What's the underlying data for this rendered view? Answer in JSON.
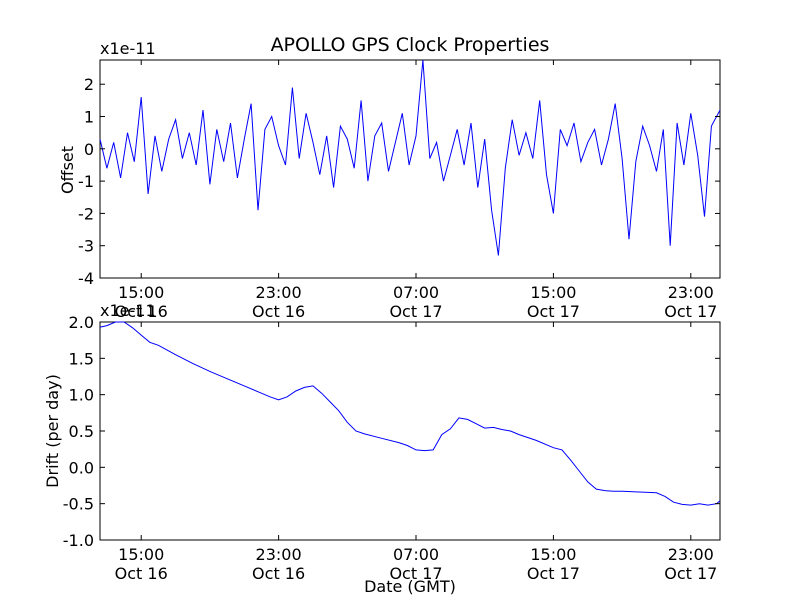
{
  "chart_data": [
    {
      "type": "line",
      "title": "APOLLO GPS Clock Properties",
      "xlabel": "",
      "ylabel": "Offset",
      "scale_label": "x1e-11",
      "scale_factor": 1e-11,
      "x_range_hours": [
        12.6,
        48.7
      ],
      "x_ticks": [
        {
          "hour": 15,
          "time": "15:00",
          "date": "Oct 16"
        },
        {
          "hour": 23,
          "time": "23:00",
          "date": "Oct 16"
        },
        {
          "hour": 31,
          "time": "07:00",
          "date": "Oct 17"
        },
        {
          "hour": 39,
          "time": "15:00",
          "date": "Oct 17"
        },
        {
          "hour": 47,
          "time": "23:00",
          "date": "Oct 17"
        }
      ],
      "ylim": [
        -4,
        2.75
      ],
      "y_ticks": [
        2,
        1,
        0,
        -1,
        -2,
        -3,
        -4
      ],
      "y_tick_labels": [
        "2",
        "1",
        "0",
        "-1",
        "-2",
        "-3",
        "-4"
      ],
      "grid": false,
      "line_color": "#0000ff",
      "series": [
        {
          "x_hours": [
            12.6,
            13.0,
            13.4,
            13.8,
            14.2,
            14.6,
            15.0,
            15.4,
            15.8,
            16.2,
            16.6,
            17.0,
            17.4,
            17.8,
            18.2,
            18.6,
            19.0,
            19.4,
            19.8,
            20.2,
            20.6,
            21.0,
            21.4,
            21.8,
            22.2,
            22.6,
            23.0,
            23.4,
            23.8,
            24.2,
            24.6,
            25.0,
            25.4,
            25.8,
            26.2,
            26.6,
            27.0,
            27.4,
            27.8,
            28.2,
            28.6,
            29.0,
            29.4,
            29.8,
            30.2,
            30.6,
            31.0,
            31.4,
            31.8,
            32.2,
            32.6,
            33.0,
            33.4,
            33.8,
            34.2,
            34.6,
            35.0,
            35.4,
            35.8,
            36.2,
            36.6,
            37.0,
            37.4,
            37.8,
            38.2,
            38.6,
            39.0,
            39.4,
            39.8,
            40.2,
            40.6,
            41.0,
            41.4,
            41.8,
            42.2,
            42.6,
            43.0,
            43.4,
            43.8,
            44.2,
            44.6,
            45.0,
            45.4,
            45.8,
            46.2,
            46.6,
            47.0,
            47.4,
            47.8,
            48.2,
            48.7
          ],
          "values": [
            0.3,
            -0.6,
            0.2,
            -0.9,
            0.5,
            -0.4,
            1.6,
            -1.4,
            0.4,
            -0.7,
            0.3,
            0.9,
            -0.3,
            0.5,
            -0.5,
            1.2,
            -1.1,
            0.6,
            -0.4,
            0.8,
            -0.9,
            0.3,
            1.4,
            -1.9,
            0.6,
            1.0,
            0.1,
            -0.5,
            1.9,
            -0.3,
            1.1,
            0.2,
            -0.8,
            0.4,
            -1.2,
            0.7,
            0.3,
            -0.6,
            1.5,
            -1.0,
            0.4,
            0.8,
            -0.7,
            0.2,
            1.1,
            -0.5,
            0.4,
            2.8,
            -0.3,
            0.2,
            -1.0,
            -0.2,
            0.6,
            -0.5,
            0.8,
            -1.2,
            0.3,
            -1.9,
            -3.3,
            -0.6,
            0.9,
            -0.2,
            0.5,
            -0.3,
            1.5,
            -0.8,
            -2.0,
            0.6,
            0.1,
            0.8,
            -0.4,
            0.2,
            0.6,
            -0.5,
            0.3,
            1.4,
            -0.3,
            -2.8,
            -0.4,
            0.7,
            0.1,
            -0.7,
            0.6,
            -3.0,
            0.8,
            -0.5,
            1.1,
            -0.2,
            -2.1,
            0.7,
            1.2
          ]
        }
      ]
    },
    {
      "type": "line",
      "title": "",
      "xlabel": "Date (GMT)",
      "ylabel": "Drift (per day)",
      "scale_label": "x1e-11",
      "scale_factor": 1e-11,
      "x_range_hours": [
        12.6,
        48.7
      ],
      "x_ticks": [
        {
          "hour": 15,
          "time": "15:00",
          "date": "Oct 16"
        },
        {
          "hour": 23,
          "time": "23:00",
          "date": "Oct 16"
        },
        {
          "hour": 31,
          "time": "07:00",
          "date": "Oct 17"
        },
        {
          "hour": 39,
          "time": "15:00",
          "date": "Oct 17"
        },
        {
          "hour": 47,
          "time": "23:00",
          "date": "Oct 17"
        }
      ],
      "ylim": [
        -1.0,
        2.0
      ],
      "y_ticks": [
        2.0,
        1.5,
        1.0,
        0.5,
        0.0,
        -0.5,
        -1.0
      ],
      "y_tick_labels": [
        "2.0",
        "1.5",
        "1.0",
        "0.5",
        "0.0",
        "-0.5",
        "-1.0"
      ],
      "grid": false,
      "line_color": "#0000ff",
      "series": [
        {
          "x_hours": [
            12.6,
            13.0,
            13.5,
            14.0,
            14.5,
            15.0,
            15.5,
            16.0,
            17.0,
            18.0,
            19.0,
            20.0,
            21.0,
            22.0,
            22.5,
            23.0,
            23.5,
            24.0,
            24.5,
            25.0,
            25.5,
            26.0,
            26.5,
            27.0,
            27.5,
            28.0,
            29.0,
            30.0,
            30.5,
            31.0,
            31.5,
            32.0,
            32.5,
            33.0,
            33.5,
            34.0,
            34.5,
            35.0,
            35.5,
            36.0,
            36.5,
            37.0,
            38.0,
            39.0,
            39.5,
            40.0,
            40.5,
            41.0,
            41.5,
            42.0,
            42.5,
            43.0,
            44.0,
            45.0,
            45.5,
            46.0,
            46.5,
            47.0,
            47.5,
            48.0,
            48.5,
            48.7
          ],
          "values": [
            1.93,
            1.95,
            2.0,
            2.0,
            1.92,
            1.82,
            1.72,
            1.68,
            1.55,
            1.43,
            1.32,
            1.22,
            1.12,
            1.02,
            0.97,
            0.93,
            0.97,
            1.05,
            1.1,
            1.12,
            1.02,
            0.9,
            0.78,
            0.62,
            0.5,
            0.46,
            0.4,
            0.34,
            0.3,
            0.24,
            0.23,
            0.24,
            0.45,
            0.53,
            0.68,
            0.66,
            0.6,
            0.54,
            0.55,
            0.52,
            0.5,
            0.45,
            0.37,
            0.27,
            0.24,
            0.1,
            -0.05,
            -0.2,
            -0.3,
            -0.32,
            -0.33,
            -0.33,
            -0.34,
            -0.35,
            -0.4,
            -0.48,
            -0.51,
            -0.52,
            -0.5,
            -0.52,
            -0.5,
            -0.46
          ]
        }
      ]
    }
  ]
}
